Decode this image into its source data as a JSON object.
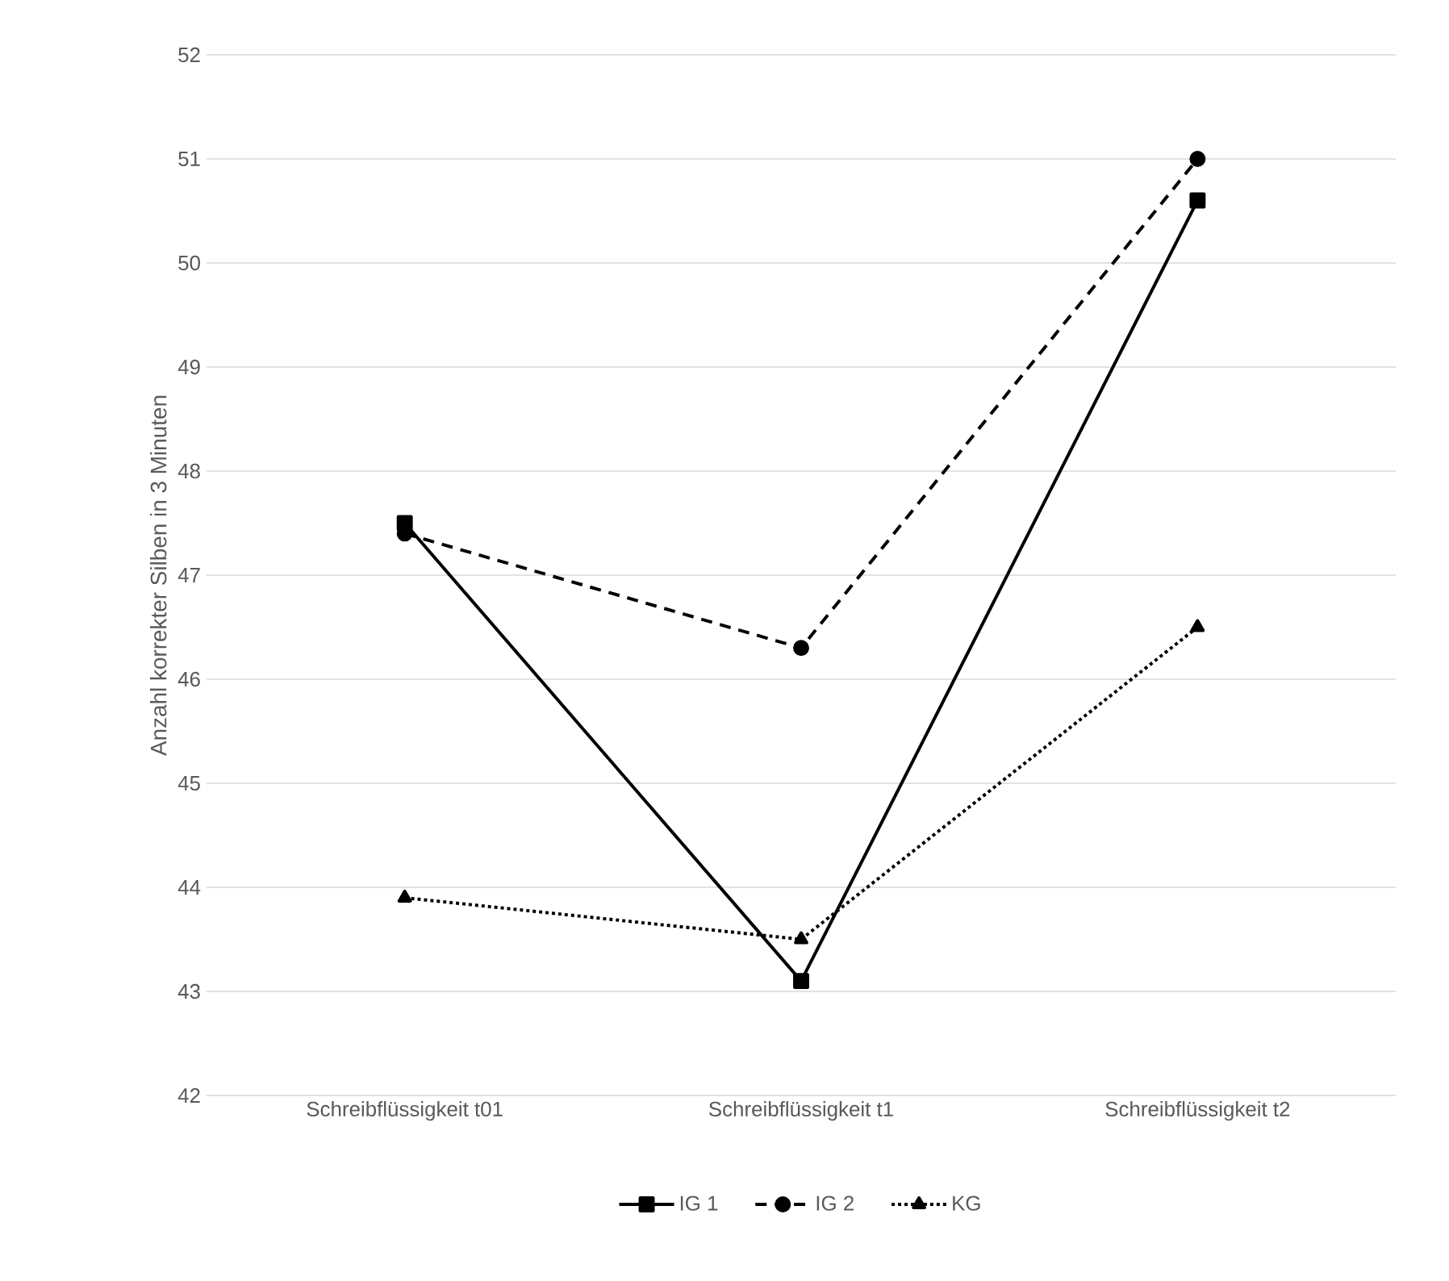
{
  "chart_data": {
    "type": "line",
    "ylabel": "Anzahl korrekter Silben in 3 Minuten",
    "categories": [
      "Schreibflüssigkeit t01",
      "Schreibflüssigkeit t1",
      "Schreibflüssigkeit t2"
    ],
    "series": [
      {
        "name": "IG 1",
        "color": "#000000",
        "values": [
          47.5,
          43.1,
          50.6
        ],
        "marker": "square",
        "line_style": "solid"
      },
      {
        "name": "IG 2",
        "color": "#000000",
        "values": [
          47.4,
          46.3,
          51.0
        ],
        "marker": "circle",
        "line_style": "dashed"
      },
      {
        "name": "KG",
        "color": "#000000",
        "values": [
          43.9,
          43.5,
          46.5
        ],
        "marker": "triangle",
        "line_style": "dotted"
      }
    ],
    "ylim": [
      42,
      52
    ],
    "yticks": [
      42,
      43,
      44,
      45,
      46,
      47,
      48,
      49,
      50,
      51,
      52
    ],
    "grid": "y",
    "legend": "bottom"
  }
}
